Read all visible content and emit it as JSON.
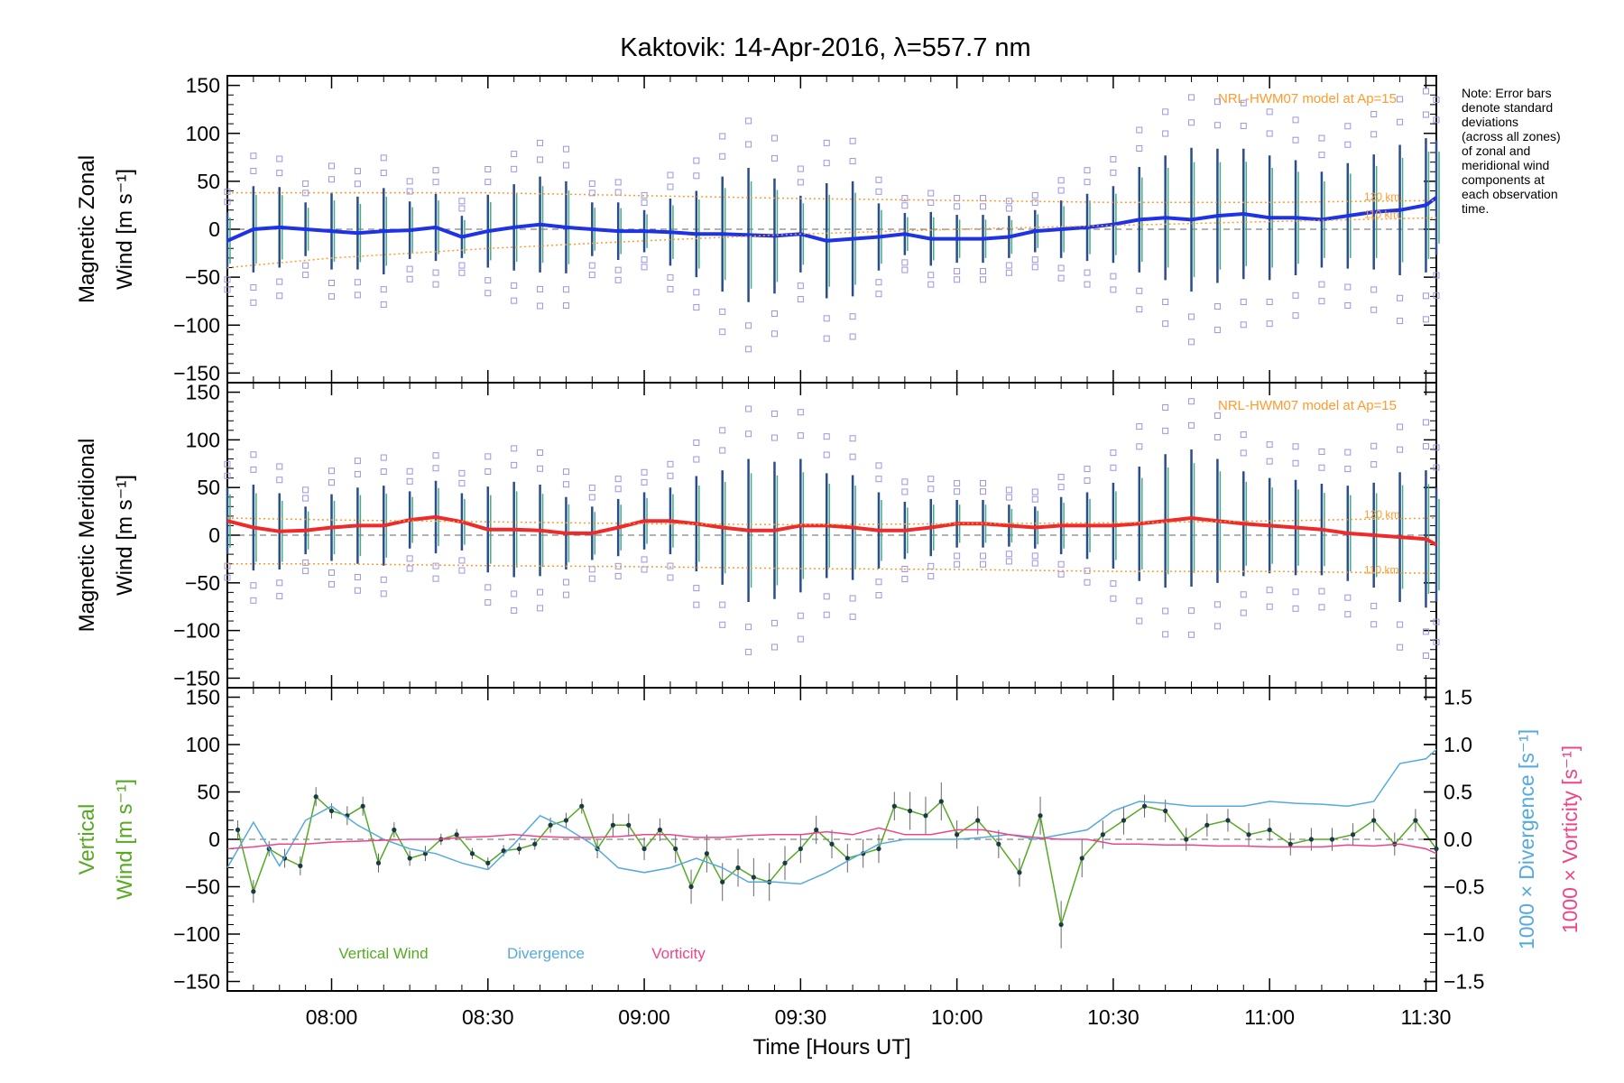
{
  "chart_data": [
    {
      "type": "line",
      "title": "Kaktovik: 14-Apr-2016, λ=557.7 nm",
      "ylabel_line1": "Magnetic Zonal",
      "ylabel_line2": "Wind [m s⁻¹]",
      "ylim": [
        -160,
        160
      ],
      "yticks": [
        -150,
        -100,
        -50,
        0,
        50,
        100,
        150
      ],
      "xlim": [
        "07:40",
        "11:32"
      ],
      "model_label": "NRL-HWM07 model at Ap=15",
      "model_alt_labels": [
        "120 km",
        "110 km"
      ],
      "series": [
        {
          "name": "Zonal wind",
          "color": "#1e32e6",
          "x": [
            "07:40",
            "07:45",
            "07:50",
            "07:55",
            "08:00",
            "08:05",
            "08:10",
            "08:15",
            "08:20",
            "08:25",
            "08:30",
            "08:35",
            "08:40",
            "08:45",
            "08:50",
            "08:55",
            "09:00",
            "09:05",
            "09:10",
            "09:15",
            "09:20",
            "09:25",
            "09:30",
            "09:35",
            "09:40",
            "09:45",
            "09:50",
            "09:55",
            "10:00",
            "10:05",
            "10:10",
            "10:15",
            "10:20",
            "10:25",
            "10:30",
            "10:35",
            "10:40",
            "10:45",
            "10:50",
            "10:55",
            "11:00",
            "11:05",
            "11:10",
            "11:15",
            "11:20",
            "11:25",
            "11:30",
            "11:32"
          ],
          "y": [
            -12,
            0,
            2,
            0,
            -2,
            -4,
            -2,
            -1,
            2,
            -8,
            -2,
            2,
            5,
            2,
            0,
            -2,
            -2,
            -3,
            -5,
            -5,
            -6,
            -7,
            -5,
            -12,
            -10,
            -8,
            -5,
            -10,
            -10,
            -10,
            -8,
            -2,
            0,
            2,
            5,
            10,
            12,
            10,
            14,
            16,
            12,
            12,
            10,
            14,
            18,
            20,
            25,
            33
          ],
          "errors": [
            30,
            45,
            42,
            28,
            40,
            38,
            45,
            30,
            35,
            22,
            38,
            45,
            50,
            48,
            28,
            30,
            22,
            35,
            45,
            60,
            70,
            60,
            40,
            60,
            60,
            35,
            22,
            28,
            25,
            25,
            22,
            22,
            30,
            35,
            40,
            55,
            65,
            75,
            70,
            68,
            65,
            60,
            50,
            55,
            60,
            68,
            70,
            60
          ]
        },
        {
          "name": "NRL-HWM07 120 km",
          "color": "#ff9b2e",
          "x": [
            "07:40",
            "08:00",
            "08:30",
            "09:00",
            "09:30",
            "10:00",
            "10:30",
            "11:00",
            "11:32"
          ],
          "y": [
            38,
            38,
            38,
            35,
            32,
            30,
            28,
            28,
            30
          ]
        },
        {
          "name": "NRL-HWM07 110 km",
          "color": "#ff9b2e",
          "x": [
            "07:40",
            "08:00",
            "08:30",
            "09:00",
            "09:30",
            "10:00",
            "10:30",
            "11:00",
            "11:32"
          ],
          "y": [
            -40,
            -30,
            -20,
            -12,
            -5,
            0,
            4,
            8,
            12
          ]
        }
      ]
    },
    {
      "type": "line",
      "ylabel_line1": "Magnetic Meridional",
      "ylabel_line2": "Wind [m s⁻¹]",
      "ylim": [
        -160,
        160
      ],
      "yticks": [
        -150,
        -100,
        -50,
        0,
        50,
        100,
        150
      ],
      "xlim": [
        "07:40",
        "11:32"
      ],
      "model_label": "NRL-HWM07 model at Ap=15",
      "model_alt_labels": [
        "120 km",
        "110 km"
      ],
      "series": [
        {
          "name": "Meridional wind",
          "color": "#ee2a2a",
          "x": [
            "07:40",
            "07:45",
            "07:50",
            "07:55",
            "08:00",
            "08:05",
            "08:10",
            "08:15",
            "08:20",
            "08:25",
            "08:30",
            "08:35",
            "08:40",
            "08:45",
            "08:50",
            "08:55",
            "09:00",
            "09:05",
            "09:10",
            "09:15",
            "09:20",
            "09:25",
            "09:30",
            "09:35",
            "09:40",
            "09:45",
            "09:50",
            "09:55",
            "10:00",
            "10:05",
            "10:10",
            "10:15",
            "10:20",
            "10:25",
            "10:30",
            "10:35",
            "10:40",
            "10:45",
            "10:50",
            "10:55",
            "11:00",
            "11:05",
            "11:10",
            "11:15",
            "11:20",
            "11:25",
            "11:30",
            "11:32"
          ],
          "y": [
            15,
            8,
            4,
            5,
            8,
            10,
            10,
            16,
            19,
            14,
            6,
            6,
            5,
            2,
            2,
            8,
            15,
            15,
            12,
            8,
            5,
            5,
            10,
            10,
            8,
            5,
            5,
            8,
            12,
            12,
            10,
            8,
            10,
            10,
            10,
            12,
            15,
            18,
            15,
            12,
            10,
            8,
            6,
            2,
            0,
            -2,
            -4,
            -10
          ],
          "errors": [
            35,
            45,
            40,
            25,
            35,
            40,
            42,
            30,
            38,
            30,
            45,
            50,
            48,
            38,
            28,
            30,
            30,
            35,
            50,
            60,
            75,
            72,
            70,
            55,
            55,
            40,
            30,
            30,
            25,
            25,
            22,
            22,
            30,
            35,
            45,
            60,
            70,
            72,
            65,
            55,
            50,
            50,
            48,
            50,
            55,
            68,
            72,
            60
          ]
        },
        {
          "name": "NRL-HWM07 120 km",
          "color": "#ff9b2e",
          "x": [
            "07:40",
            "08:00",
            "08:30",
            "09:00",
            "09:30",
            "10:00",
            "10:30",
            "11:00",
            "11:32"
          ],
          "y": [
            18,
            16,
            14,
            12,
            11,
            12,
            13,
            15,
            18
          ]
        },
        {
          "name": "NRL-HWM07 110 km",
          "color": "#ff9b2e",
          "x": [
            "07:40",
            "08:00",
            "08:30",
            "09:00",
            "09:30",
            "10:00",
            "10:30",
            "11:00",
            "11:32"
          ],
          "y": [
            -30,
            -30,
            -32,
            -33,
            -35,
            -36,
            -38,
            -38,
            -40
          ]
        }
      ]
    },
    {
      "type": "line",
      "ylabel_line1": "Vertical",
      "ylabel_line2": "Wind [m s⁻¹]",
      "ylim": [
        -160,
        160
      ],
      "yticks": [
        -150,
        -100,
        -50,
        0,
        50,
        100,
        150
      ],
      "y2label_1": "1000 × Divergence [s⁻¹]",
      "y2label_2": "1000 × Vorticity [s⁻¹]",
      "y2lim": [
        -1.6,
        1.6
      ],
      "y2ticks": [
        -1.5,
        -1.0,
        -0.5,
        0.0,
        0.5,
        1.0,
        1.5
      ],
      "y2ticklabels": [
        "−1.5",
        "−1.0",
        "−0.5",
        "0.0",
        "0.5",
        "1.0",
        "1.5"
      ],
      "xlim": [
        "07:40",
        "11:32"
      ],
      "xticks": [
        "08:00",
        "08:30",
        "09:00",
        "09:30",
        "10:00",
        "10:30",
        "11:00",
        "11:30"
      ],
      "xlabel": "Time [Hours UT]",
      "legend": [
        "Vertical Wind",
        "Divergence",
        "Vorticity"
      ],
      "series": [
        {
          "name": "Vertical Wind",
          "color": "#55aa22",
          "x": [
            "07:42",
            "07:45",
            "07:48",
            "07:51",
            "07:54",
            "07:57",
            "08:00",
            "08:03",
            "08:06",
            "08:09",
            "08:12",
            "08:15",
            "08:18",
            "08:21",
            "08:24",
            "08:27",
            "08:30",
            "08:33",
            "08:36",
            "08:39",
            "08:42",
            "08:45",
            "08:48",
            "08:51",
            "08:54",
            "08:57",
            "09:00",
            "09:03",
            "09:06",
            "09:09",
            "09:12",
            "09:15",
            "09:18",
            "09:21",
            "09:24",
            "09:27",
            "09:30",
            "09:33",
            "09:36",
            "09:39",
            "09:42",
            "09:45",
            "09:48",
            "09:51",
            "09:54",
            "09:57",
            "10:00",
            "10:04",
            "10:08",
            "10:12",
            "10:16",
            "10:20",
            "10:24",
            "10:28",
            "10:32",
            "10:36",
            "10:40",
            "10:44",
            "10:48",
            "10:52",
            "10:56",
            "11:00",
            "11:04",
            "11:08",
            "11:12",
            "11:16",
            "11:20",
            "11:24",
            "11:28",
            "11:32"
          ],
          "y": [
            10,
            -55,
            -10,
            -20,
            -28,
            45,
            30,
            25,
            35,
            -25,
            10,
            -20,
            -15,
            0,
            5,
            -15,
            -25,
            -12,
            -10,
            -5,
            15,
            20,
            35,
            -10,
            15,
            15,
            -10,
            10,
            -10,
            -50,
            -15,
            -45,
            -30,
            -40,
            -45,
            -25,
            -10,
            10,
            -5,
            -20,
            -15,
            -10,
            35,
            30,
            25,
            40,
            5,
            20,
            -5,
            -35,
            25,
            -90,
            -20,
            5,
            20,
            35,
            30,
            0,
            15,
            20,
            5,
            10,
            -5,
            0,
            0,
            5,
            20,
            -5,
            20,
            -10
          ],
          "errors": [
            10,
            12,
            8,
            10,
            10,
            10,
            8,
            10,
            10,
            10,
            8,
            8,
            8,
            6,
            6,
            6,
            6,
            6,
            6,
            6,
            8,
            8,
            8,
            10,
            12,
            12,
            12,
            12,
            15,
            18,
            20,
            20,
            20,
            20,
            20,
            18,
            15,
            15,
            15,
            15,
            15,
            15,
            15,
            20,
            20,
            20,
            15,
            15,
            15,
            15,
            20,
            25,
            20,
            15,
            15,
            12,
            12,
            12,
            12,
            12,
            12,
            12,
            12,
            12,
            12,
            12,
            12,
            12,
            12,
            12
          ]
        },
        {
          "name": "Divergence",
          "color": "#55aadd",
          "x": [
            "07:40",
            "07:45",
            "07:50",
            "07:55",
            "08:00",
            "08:05",
            "08:10",
            "08:15",
            "08:20",
            "08:25",
            "08:30",
            "08:35",
            "08:40",
            "08:45",
            "08:50",
            "08:55",
            "09:00",
            "09:05",
            "09:10",
            "09:15",
            "09:20",
            "09:25",
            "09:30",
            "09:35",
            "09:40",
            "09:45",
            "09:50",
            "09:55",
            "10:00",
            "10:05",
            "10:10",
            "10:15",
            "10:20",
            "10:25",
            "10:30",
            "10:35",
            "10:40",
            "10:45",
            "10:50",
            "10:55",
            "11:00",
            "11:05",
            "11:10",
            "11:15",
            "11:20",
            "11:25",
            "11:30",
            "11:32"
          ],
          "y": [
            -0.3,
            0.18,
            -0.28,
            0.2,
            0.35,
            0.15,
            0.0,
            -0.1,
            -0.15,
            -0.25,
            -0.32,
            -0.05,
            0.25,
            0.12,
            -0.05,
            -0.3,
            -0.35,
            -0.3,
            -0.2,
            -0.3,
            -0.45,
            -0.45,
            -0.47,
            -0.35,
            -0.2,
            -0.05,
            0.0,
            0.0,
            0.0,
            0.02,
            0.05,
            0.0,
            0.05,
            0.1,
            0.3,
            0.4,
            0.38,
            0.35,
            0.35,
            0.35,
            0.4,
            0.38,
            0.37,
            0.35,
            0.4,
            0.8,
            0.85,
            0.95
          ]
        },
        {
          "name": "Vorticity",
          "color": "#ee4488",
          "x": [
            "07:40",
            "07:45",
            "07:50",
            "07:55",
            "08:00",
            "08:05",
            "08:10",
            "08:15",
            "08:20",
            "08:25",
            "08:30",
            "08:35",
            "08:40",
            "08:45",
            "08:50",
            "08:55",
            "09:00",
            "09:05",
            "09:10",
            "09:15",
            "09:20",
            "09:25",
            "09:30",
            "09:35",
            "09:40",
            "09:45",
            "09:50",
            "09:55",
            "10:00",
            "10:05",
            "10:10",
            "10:15",
            "10:20",
            "10:25",
            "10:30",
            "10:35",
            "10:40",
            "10:45",
            "10:50",
            "10:55",
            "11:00",
            "11:05",
            "11:10",
            "11:15",
            "11:20",
            "11:25",
            "11:30",
            "11:32"
          ],
          "y": [
            -0.1,
            -0.08,
            -0.05,
            -0.05,
            -0.03,
            -0.02,
            -0.01,
            0.0,
            0.0,
            0.02,
            0.03,
            0.05,
            0.03,
            0.02,
            0.02,
            0.03,
            0.05,
            0.05,
            0.02,
            0.02,
            0.04,
            0.05,
            0.05,
            0.08,
            0.05,
            0.12,
            0.05,
            0.05,
            0.1,
            0.1,
            0.05,
            0.02,
            0.0,
            0.0,
            -0.05,
            -0.05,
            -0.06,
            -0.06,
            -0.07,
            -0.07,
            -0.08,
            -0.08,
            -0.08,
            -0.06,
            -0.07,
            -0.05,
            -0.1,
            -0.15
          ]
        }
      ]
    }
  ],
  "note": [
    "Note: Error bars",
    "denote standard",
    "deviations",
    "(across all zones)",
    "of zonal and",
    "meridional wind",
    "components at",
    "each observation",
    "time."
  ]
}
